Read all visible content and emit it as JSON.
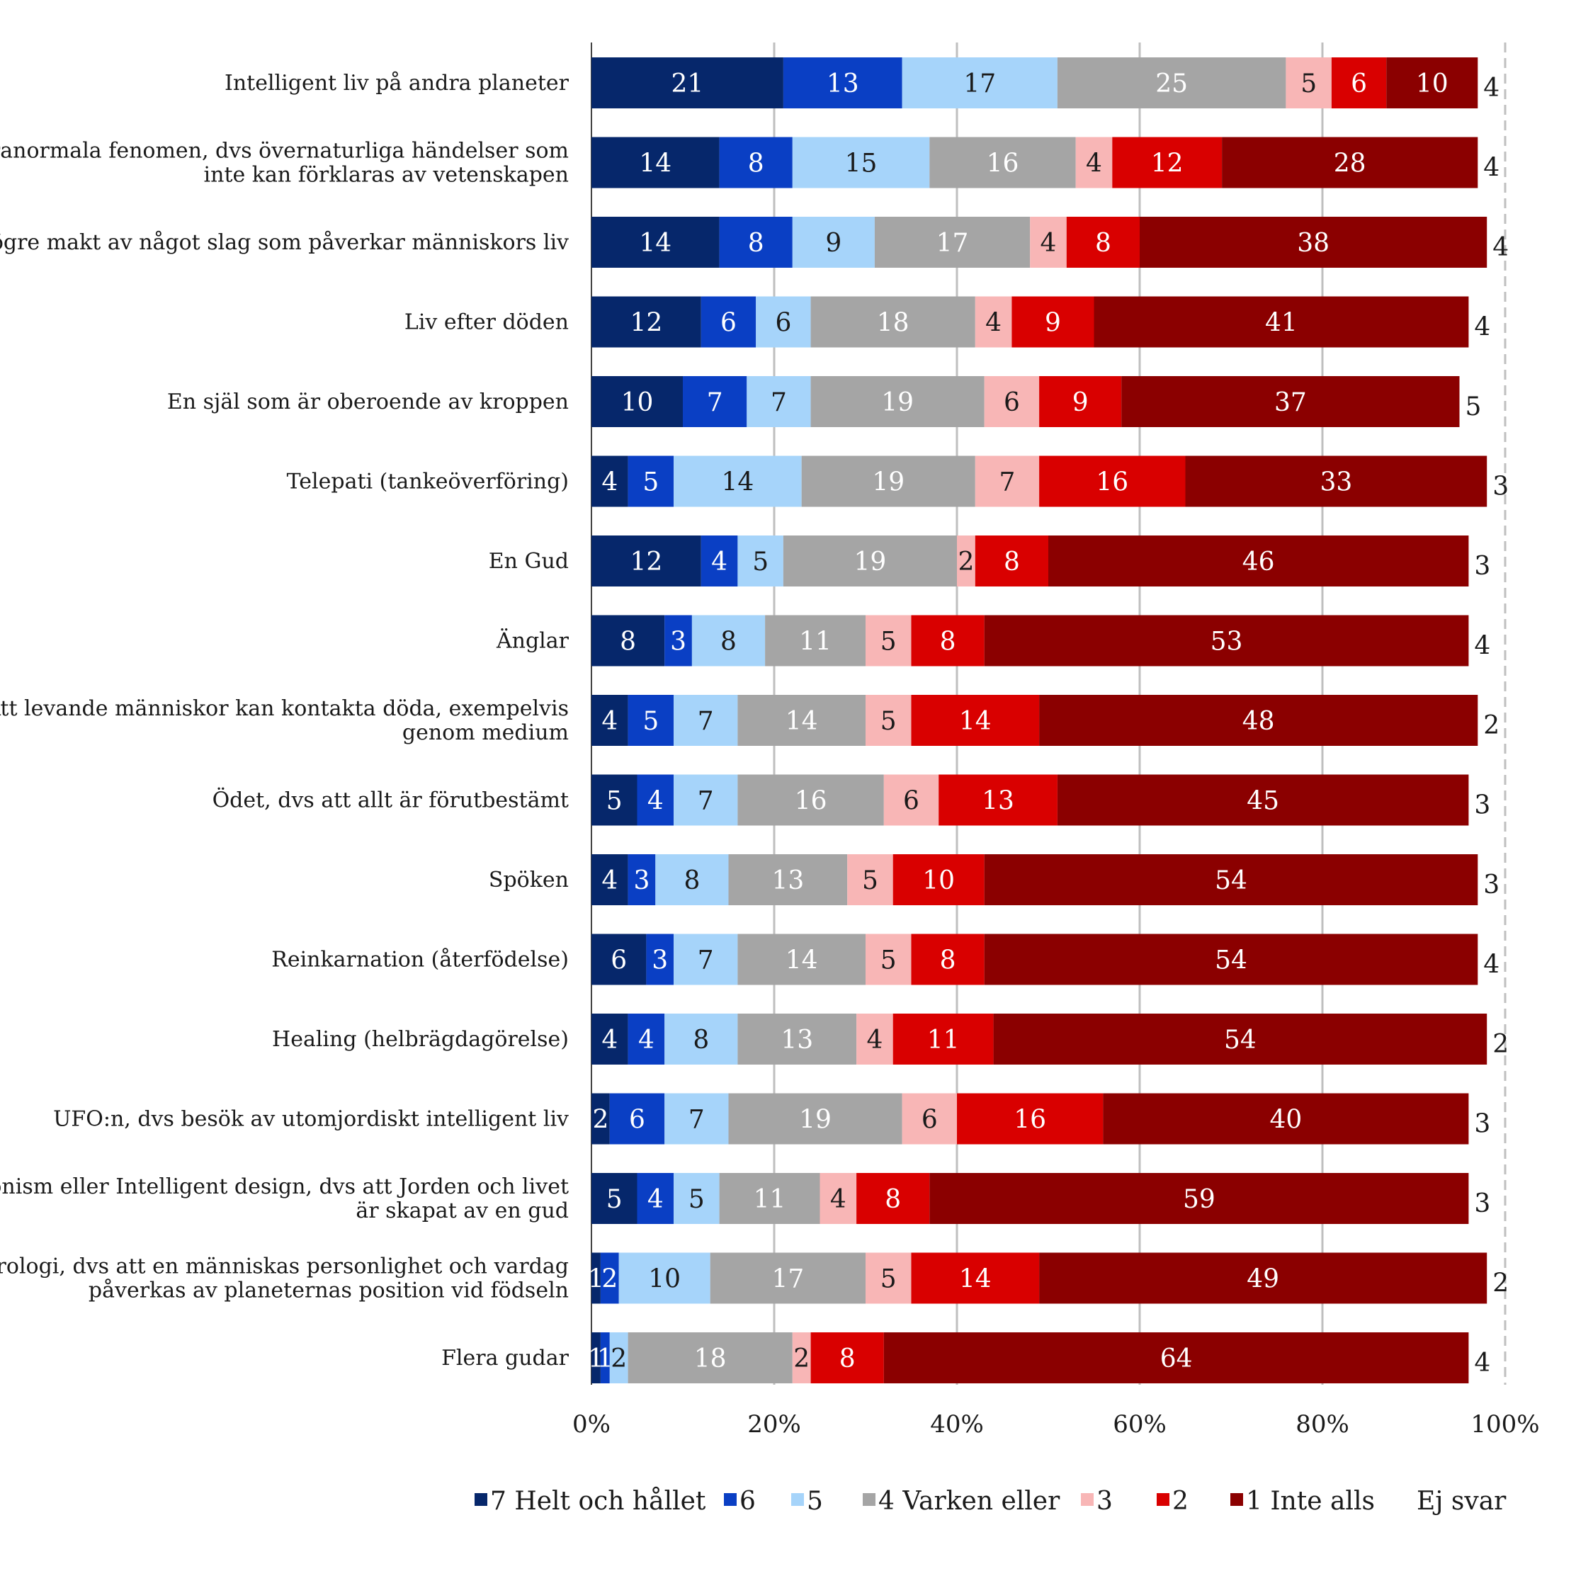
{
  "chart_data": {
    "type": "bar",
    "orientation": "horizontal",
    "stacked": true,
    "title": "",
    "xlabel": "",
    "ylabel": "",
    "xlim": [
      0,
      100
    ],
    "ticks": [
      "0%",
      "20%",
      "40%",
      "60%",
      "80%",
      "100%"
    ],
    "grid": true,
    "legend_position": "bottom",
    "categories": [
      "Intelligent liv på andra planeter",
      "Paranormala fenomen, dvs övernaturliga händelser som\ninte kan förklaras av vetenskapen",
      "En högre makt av något slag som påverkar människors liv",
      "Liv efter döden",
      "En själ som är oberoende av kroppen",
      "Telepati (tankeöverföring)",
      "En Gud",
      "Änglar",
      "Att levande människor kan kontakta döda, exempelvis\ngenom medium",
      "Ödet, dvs att allt är förutbestämt",
      "Spöken",
      "Reinkarnation (återfödelse)",
      "Healing (helbrägdagörelse)",
      "UFO:n, dvs besök av utomjordiskt intelligent liv",
      "Kreationism eller Intelligent design, dvs att Jorden och livet\när skapat av en gud",
      "Astrologi, dvs att en människas personlighet och vardag\npåverkas av planeternas position vid födseln",
      "Flera gudar"
    ],
    "series": [
      {
        "name": "7 Helt och hållet",
        "color": "#06276b",
        "text_color": "#ffffff",
        "values": [
          21,
          14,
          14,
          12,
          10,
          4,
          12,
          8,
          4,
          5,
          4,
          6,
          4,
          2,
          5,
          1,
          1
        ]
      },
      {
        "name": "6",
        "color": "#0a3fc4",
        "text_color": "#ffffff",
        "values": [
          13,
          8,
          8,
          6,
          7,
          5,
          4,
          3,
          5,
          4,
          3,
          3,
          4,
          6,
          4,
          2,
          1
        ]
      },
      {
        "name": "5",
        "color": "#a6d4fa",
        "text_color": "#1a1a1a",
        "values": [
          17,
          15,
          9,
          6,
          7,
          14,
          5,
          8,
          7,
          7,
          8,
          7,
          8,
          7,
          5,
          10,
          2
        ]
      },
      {
        "name": "4 Varken eller",
        "color": "#a5a5a5",
        "text_color": "#ffffff",
        "values": [
          25,
          16,
          17,
          18,
          19,
          19,
          19,
          11,
          14,
          16,
          13,
          14,
          13,
          19,
          11,
          17,
          18
        ]
      },
      {
        "name": "3",
        "color": "#f8b6b6",
        "text_color": "#1a1a1a",
        "values": [
          5,
          4,
          4,
          4,
          6,
          7,
          2,
          5,
          5,
          6,
          5,
          5,
          4,
          6,
          4,
          5,
          2
        ]
      },
      {
        "name": "2",
        "color": "#d90000",
        "text_color": "#ffffff",
        "values": [
          6,
          12,
          8,
          9,
          9,
          16,
          8,
          8,
          14,
          13,
          10,
          8,
          11,
          16,
          8,
          14,
          8
        ]
      },
      {
        "name": "1 Inte alls",
        "color": "#8b0000",
        "text_color": "#ffffff",
        "values": [
          10,
          28,
          38,
          41,
          37,
          33,
          46,
          53,
          48,
          45,
          54,
          54,
          54,
          40,
          59,
          49,
          64
        ]
      }
    ],
    "ej_svar": {
      "name": "Ej svar",
      "values": [
        4,
        4,
        4,
        4,
        5,
        3,
        3,
        4,
        2,
        3,
        3,
        4,
        2,
        3,
        3,
        2,
        4
      ]
    }
  }
}
